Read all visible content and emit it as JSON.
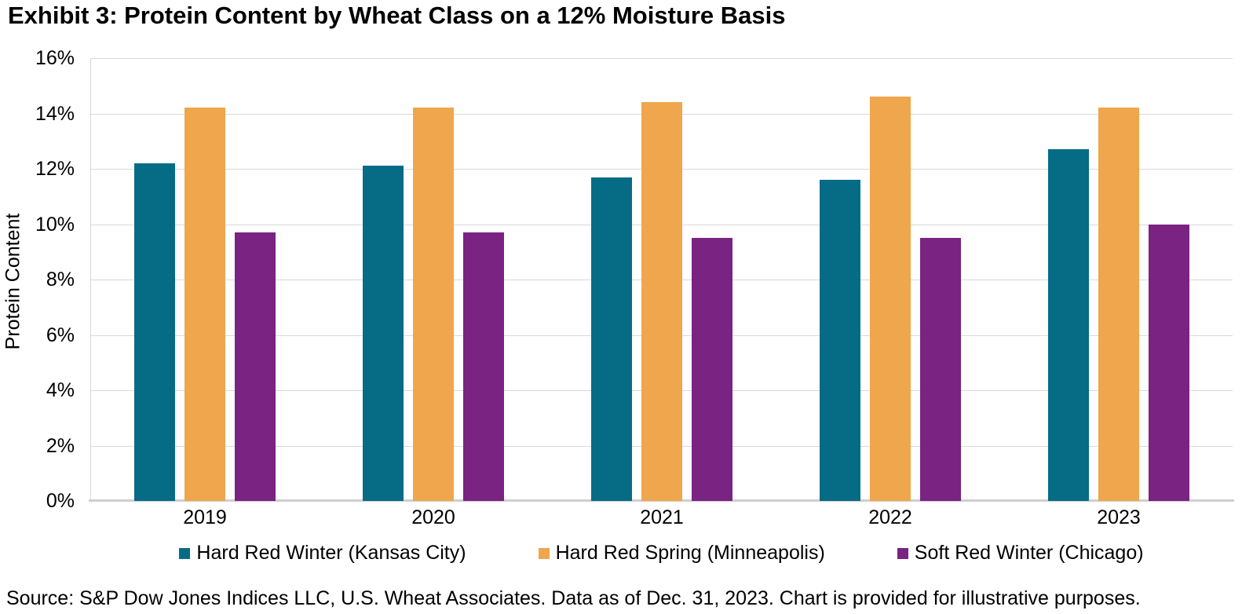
{
  "title": "Exhibit 3: Protein Content by Wheat Class on a 12% Moisture Basis",
  "source_note": "Source: S&P Dow Jones Indices LLC, U.S. Wheat Associates. Data as of Dec. 31, 2023. Chart is provided for illustrative purposes.",
  "colors": {
    "hard_red_winter": "#066c86",
    "hard_red_spring": "#f0a64c",
    "soft_red_winter": "#7a2383",
    "gridline": "#d9d9d9",
    "axis_line": "#d0cece",
    "text": "#000000",
    "background": "#ffffff"
  },
  "chart_data": {
    "type": "bar",
    "title": "Exhibit 3: Protein Content by Wheat Class on a 12% Moisture Basis",
    "categories": [
      "2019",
      "2020",
      "2021",
      "2022",
      "2023"
    ],
    "series": [
      {
        "name": "Hard Red Winter (Kansas City)",
        "color": "#066c86",
        "values": [
          12.2,
          12.1,
          11.7,
          11.6,
          12.7
        ]
      },
      {
        "name": "Hard Red Spring (Minneapolis)",
        "color": "#f0a64c",
        "values": [
          14.2,
          14.2,
          14.4,
          14.6,
          14.2
        ]
      },
      {
        "name": "Soft Red Winter (Chicago)",
        "color": "#7a2383",
        "values": [
          9.7,
          9.7,
          9.5,
          9.5,
          10.0
        ]
      }
    ],
    "xlabel": "",
    "ylabel": "Protein Content",
    "ylim": [
      0,
      16
    ],
    "ytick_step": 2,
    "ytick_suffix": "%",
    "grid": "horizontal",
    "legend_position": "bottom"
  }
}
